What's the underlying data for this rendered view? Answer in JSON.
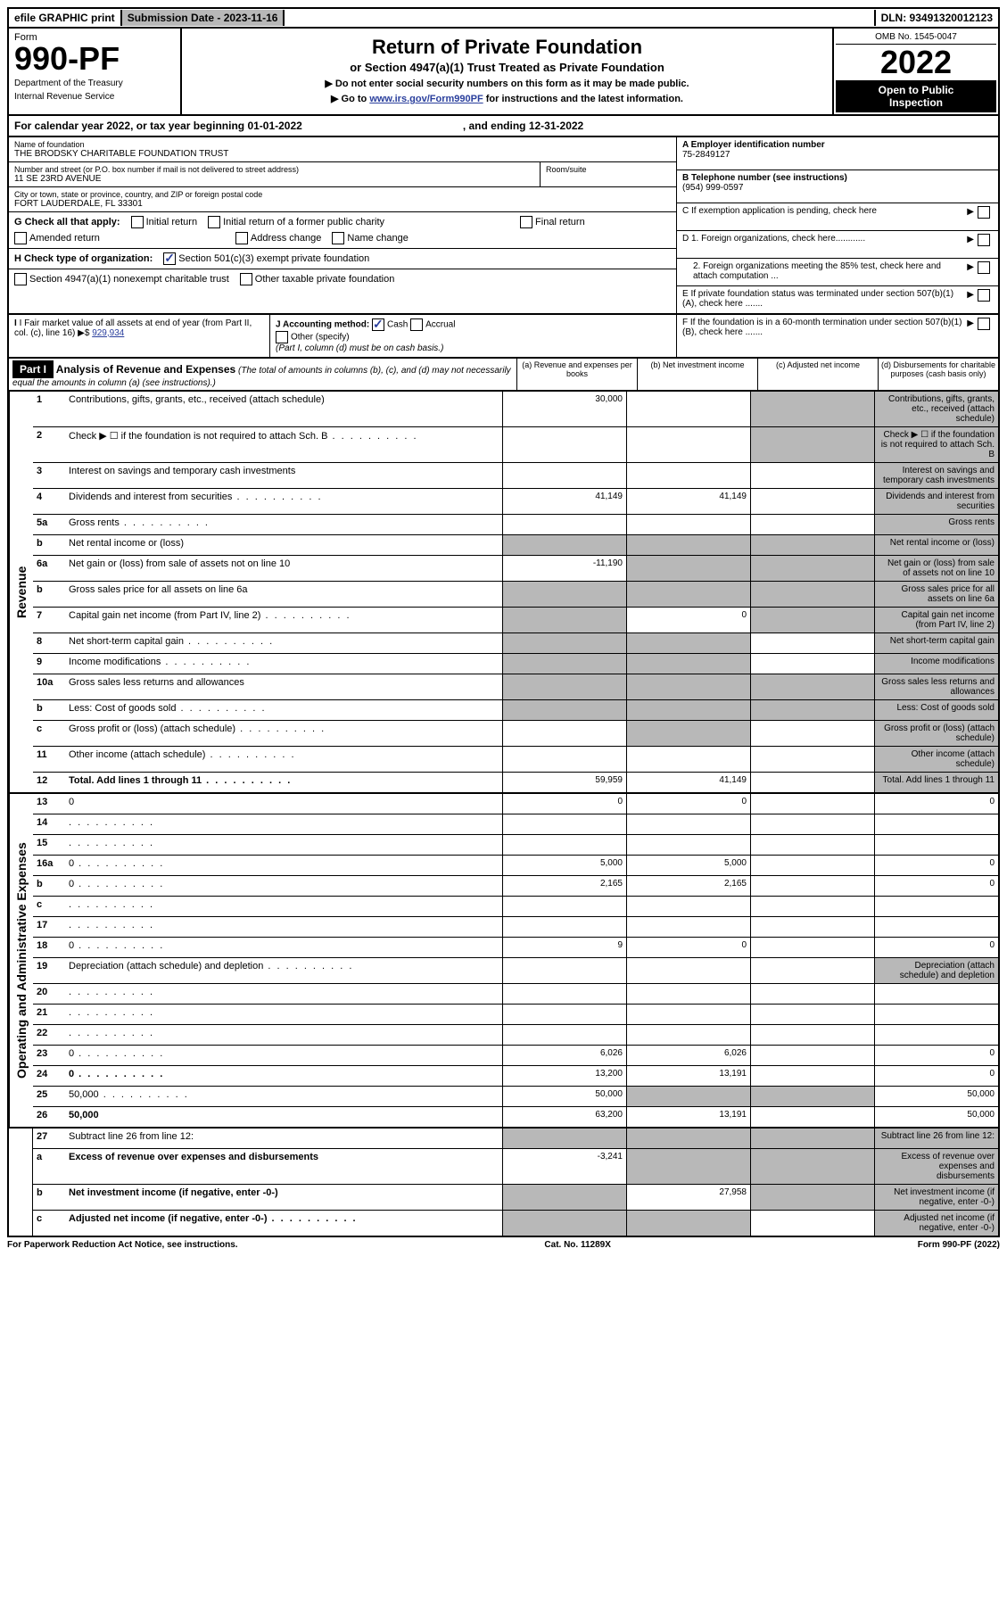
{
  "topbar": {
    "efile": "efile GRAPHIC print",
    "submission_label": "Submission Date - 2023-11-16",
    "dln": "DLN: 93491320012123"
  },
  "header": {
    "form_label": "Form",
    "form_number": "990-PF",
    "dept1": "Department of the Treasury",
    "dept2": "Internal Revenue Service",
    "title": "Return of Private Foundation",
    "subtitle": "or Section 4947(a)(1) Trust Treated as Private Foundation",
    "note1": "▶ Do not enter social security numbers on this form as it may be made public.",
    "note2_pre": "▶ Go to ",
    "note2_link": "www.irs.gov/Form990PF",
    "note2_post": " for instructions and the latest information.",
    "omb": "OMB No. 1545-0047",
    "year": "2022",
    "open1": "Open to Public",
    "open2": "Inspection"
  },
  "calendar": {
    "text1": "For calendar year 2022, or tax year beginning 01-01-2022",
    "text2": ", and ending 12-31-2022"
  },
  "entity": {
    "name_label": "Name of foundation",
    "name": "THE BRODSKY CHARITABLE FOUNDATION TRUST",
    "addr_label": "Number and street (or P.O. box number if mail is not delivered to street address)",
    "addr": "11 SE 23RD AVENUE",
    "room_label": "Room/suite",
    "city_label": "City or town, state or province, country, and ZIP or foreign postal code",
    "city": "FORT LAUDERDALE, FL  33301",
    "ein_label": "A Employer identification number",
    "ein": "75-2849127",
    "phone_label": "B Telephone number (see instructions)",
    "phone": "(954) 999-0597",
    "c_label": "C If exemption application is pending, check here",
    "d1": "D 1. Foreign organizations, check here............",
    "d2": "2. Foreign organizations meeting the 85% test, check here and attach computation ...",
    "e_label": "E  If private foundation status was terminated under section 507(b)(1)(A), check here .......",
    "f_label": "F  If the foundation is in a 60-month termination under section 507(b)(1)(B), check here .......",
    "g_label": "G Check all that apply:",
    "g_opts": [
      "Initial return",
      "Initial return of a former public charity",
      "Final return",
      "Amended return",
      "Address change",
      "Name change"
    ],
    "h_label": "H Check type of organization:",
    "h_opt1": "Section 501(c)(3) exempt private foundation",
    "h_opt2": "Section 4947(a)(1) nonexempt charitable trust",
    "h_opt3": "Other taxable private foundation",
    "i_label": "I Fair market value of all assets at end of year (from Part II, col. (c), line 16)",
    "i_value": "929,934",
    "j_label": "J Accounting method:",
    "j_cash": "Cash",
    "j_accrual": "Accrual",
    "j_other": "Other (specify)",
    "j_note": "(Part I, column (d) must be on cash basis.)"
  },
  "part1": {
    "label": "Part I",
    "title": "Analysis of Revenue and Expenses",
    "subtitle": "(The total of amounts in columns (b), (c), and (d) may not necessarily equal the amounts in column (a) (see instructions).)",
    "col_a": "(a)  Revenue and expenses per books",
    "col_b": "(b)  Net investment income",
    "col_c": "(c)  Adjusted net income",
    "col_d": "(d)  Disbursements for charitable purposes (cash basis only)"
  },
  "sections": {
    "revenue": "Revenue",
    "expenses": "Operating and Administrative Expenses"
  },
  "rows": [
    {
      "n": "1",
      "d": "Contributions, gifts, grants, etc., received (attach schedule)",
      "a": "30,000",
      "b": "",
      "c_grey": true,
      "d_grey": true
    },
    {
      "n": "2",
      "d": "Check ▶ ☐ if the foundation is not required to attach Sch. B",
      "dots": true,
      "c_grey": true,
      "d_grey": true
    },
    {
      "n": "3",
      "d": "Interest on savings and temporary cash investments",
      "a": "",
      "b": "",
      "c": "",
      "d_grey": true
    },
    {
      "n": "4",
      "d": "Dividends and interest from securities",
      "dots": true,
      "a": "41,149",
      "b": "41,149",
      "c": "",
      "d_grey": true
    },
    {
      "n": "5a",
      "d": "Gross rents",
      "dots": true,
      "a": "",
      "b": "",
      "c": "",
      "d_grey": true
    },
    {
      "n": "b",
      "d": "Net rental income or (loss)",
      "a_grey": true,
      "b_grey": true,
      "c_grey": true,
      "d_grey": true
    },
    {
      "n": "6a",
      "d": "Net gain or (loss) from sale of assets not on line 10",
      "a": "-11,190",
      "b_grey": true,
      "c_grey": true,
      "d_grey": true
    },
    {
      "n": "b",
      "d": "Gross sales price for all assets on line 6a",
      "a_grey": true,
      "b_grey": true,
      "c_grey": true,
      "d_grey": true
    },
    {
      "n": "7",
      "d": "Capital gain net income (from Part IV, line 2)",
      "dots": true,
      "a_grey": true,
      "b": "0",
      "c_grey": true,
      "d_grey": true
    },
    {
      "n": "8",
      "d": "Net short-term capital gain",
      "dots": true,
      "a_grey": true,
      "b_grey": true,
      "c": "",
      "d_grey": true
    },
    {
      "n": "9",
      "d": "Income modifications",
      "dots": true,
      "a_grey": true,
      "b_grey": true,
      "c": "",
      "d_grey": true
    },
    {
      "n": "10a",
      "d": "Gross sales less returns and allowances",
      "a_grey": true,
      "b_grey": true,
      "c_grey": true,
      "d_grey": true
    },
    {
      "n": "b",
      "d": "Less: Cost of goods sold",
      "dots": true,
      "a_grey": true,
      "b_grey": true,
      "c_grey": true,
      "d_grey": true
    },
    {
      "n": "c",
      "d": "Gross profit or (loss) (attach schedule)",
      "dots": true,
      "a": "",
      "b_grey": true,
      "c": "",
      "d_grey": true
    },
    {
      "n": "11",
      "d": "Other income (attach schedule)",
      "dots": true,
      "a": "",
      "b": "",
      "c": "",
      "d_grey": true
    },
    {
      "n": "12",
      "d": "Total. Add lines 1 through 11",
      "bold": true,
      "dots": true,
      "a": "59,959",
      "b": "41,149",
      "c": "",
      "d_grey": true
    }
  ],
  "exp_rows": [
    {
      "n": "13",
      "d": "0",
      "a": "0",
      "b": "0",
      "c": ""
    },
    {
      "n": "14",
      "d": "",
      "dots": true,
      "a": "",
      "b": "",
      "c": ""
    },
    {
      "n": "15",
      "d": "",
      "dots": true,
      "a": "",
      "b": "",
      "c": ""
    },
    {
      "n": "16a",
      "d": "0",
      "dots": true,
      "a": "5,000",
      "b": "5,000",
      "c": ""
    },
    {
      "n": "b",
      "d": "0",
      "dots": true,
      "a": "2,165",
      "b": "2,165",
      "c": ""
    },
    {
      "n": "c",
      "d": "",
      "dots": true,
      "a": "",
      "b": "",
      "c": ""
    },
    {
      "n": "17",
      "d": "",
      "dots": true,
      "a": "",
      "b": "",
      "c": ""
    },
    {
      "n": "18",
      "d": "0",
      "dots": true,
      "a": "9",
      "b": "0",
      "c": ""
    },
    {
      "n": "19",
      "d": "Depreciation (attach schedule) and depletion",
      "dots": true,
      "a": "",
      "b": "",
      "c": "",
      "d_grey": true
    },
    {
      "n": "20",
      "d": "",
      "dots": true,
      "a": "",
      "b": "",
      "c": ""
    },
    {
      "n": "21",
      "d": "",
      "dots": true,
      "a": "",
      "b": "",
      "c": ""
    },
    {
      "n": "22",
      "d": "",
      "dots": true,
      "a": "",
      "b": "",
      "c": ""
    },
    {
      "n": "23",
      "d": "0",
      "dots": true,
      "a": "6,026",
      "b": "6,026",
      "c": ""
    },
    {
      "n": "24",
      "d": "0",
      "bold": true,
      "dots": true,
      "a": "13,200",
      "b": "13,191",
      "c": ""
    },
    {
      "n": "25",
      "d": "50,000",
      "dots": true,
      "a": "50,000",
      "b_grey": true,
      "c_grey": true
    },
    {
      "n": "26",
      "d": "50,000",
      "bold": true,
      "a": "63,200",
      "b": "13,191",
      "c": ""
    }
  ],
  "net_rows": [
    {
      "n": "27",
      "d": "Subtract line 26 from line 12:",
      "a_grey": true,
      "b_grey": true,
      "c_grey": true,
      "d_grey": true
    },
    {
      "n": "a",
      "d": "Excess of revenue over expenses and disbursements",
      "bold": true,
      "a": "-3,241",
      "b_grey": true,
      "c_grey": true,
      "d_grey": true
    },
    {
      "n": "b",
      "d": "Net investment income (if negative, enter -0-)",
      "bold": true,
      "a_grey": true,
      "b": "27,958",
      "c_grey": true,
      "d_grey": true
    },
    {
      "n": "c",
      "d": "Adjusted net income (if negative, enter -0-)",
      "bold": true,
      "dots": true,
      "a_grey": true,
      "b_grey": true,
      "c": "",
      "d_grey": true
    }
  ],
  "footer": {
    "left": "For Paperwork Reduction Act Notice, see instructions.",
    "center": "Cat. No. 11289X",
    "right": "Form 990-PF (2022)"
  }
}
